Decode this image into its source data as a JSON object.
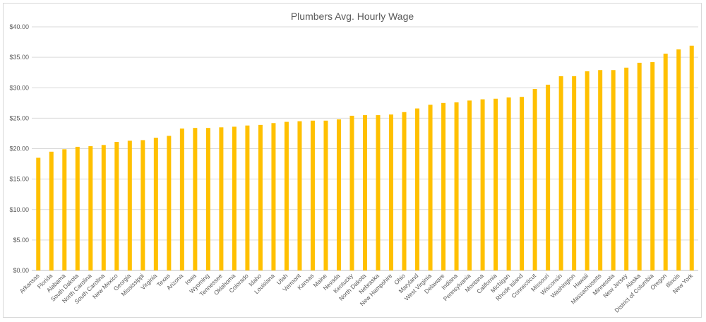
{
  "chart_data": {
    "type": "bar",
    "title": "Plumbers Avg. Hourly Wage",
    "xlabel": "",
    "ylabel": "",
    "ylim": [
      0,
      40
    ],
    "yticks": [
      "$0.00",
      "$5.00",
      "$10.00",
      "$15.00",
      "$20.00",
      "$25.00",
      "$30.00",
      "$35.00",
      "$40.00"
    ],
    "grid": true,
    "legend": "none",
    "bar_color": "#FFC000",
    "categories": [
      "Arkansas",
      "Florida",
      "Alabama",
      "South Dakota",
      "North Carolina",
      "South Carolina",
      "New Mexico",
      "Georgia",
      "Mississippi",
      "Virginia",
      "Texas",
      "Arizona",
      "Iowa",
      "Wyoming",
      "Tennessee",
      "Oklahoma",
      "Colorado",
      "Idaho",
      "Louisiana",
      "Utah",
      "Vermont",
      "Kansas",
      "Maine",
      "Nevada",
      "Kentucky",
      "North Dakota",
      "Nebraska",
      "New Hampshire",
      "Ohio",
      "Maryland",
      "West Virginia",
      "Delaware",
      "Indiana",
      "Pennsylvania",
      "Montana",
      "California",
      "Michigan",
      "Rhode Island",
      "Connecticut",
      "Missouri",
      "Wisconsin",
      "Washington",
      "Hawaii",
      "Massachusetts",
      "Minnesota",
      "New Jersey",
      "Alaska",
      "District of Columbia",
      "Oregon",
      "Illinois",
      "New York"
    ],
    "values": [
      18.5,
      19.5,
      19.9,
      20.3,
      20.4,
      20.6,
      21.1,
      21.3,
      21.4,
      21.8,
      22.1,
      23.3,
      23.4,
      23.4,
      23.5,
      23.6,
      23.8,
      23.9,
      24.2,
      24.4,
      24.5,
      24.6,
      24.6,
      24.8,
      25.4,
      25.5,
      25.5,
      25.6,
      26.0,
      26.6,
      27.2,
      27.5,
      27.6,
      27.9,
      28.1,
      28.2,
      28.4,
      28.5,
      29.8,
      30.5,
      31.9,
      31.9,
      32.7,
      32.9,
      32.9,
      33.3,
      34.1,
      34.2,
      35.6,
      36.3,
      36.9
    ]
  }
}
